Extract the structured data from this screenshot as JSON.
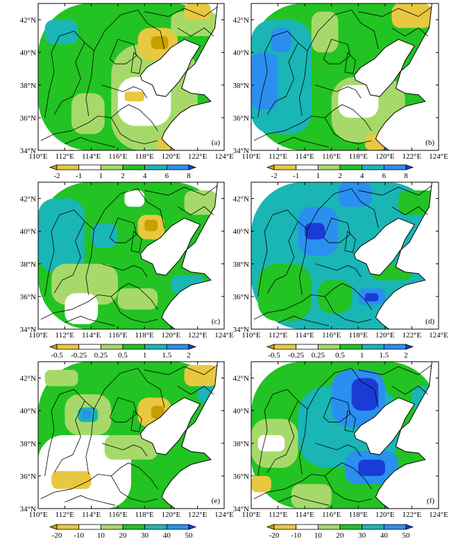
{
  "figure": {
    "lon_ticks": [
      "110°E",
      "112°E",
      "114°E",
      "116°E",
      "118°E",
      "120°E",
      "122°E",
      "124°E"
    ],
    "lat_ticks": [
      "34°N",
      "36°N",
      "38°N",
      "40°N",
      "42°N"
    ],
    "panels": [
      {
        "id": "a",
        "label": "(a)"
      },
      {
        "id": "b",
        "label": "(b)"
      },
      {
        "id": "c",
        "label": "(c)"
      },
      {
        "id": "d",
        "label": "(d)"
      },
      {
        "id": "e",
        "label": "(e)"
      },
      {
        "id": "f",
        "label": "(f)"
      }
    ],
    "colorbars": [
      {
        "id": "row1",
        "ticks": [
          "-2",
          "-1",
          "1",
          "2",
          "4",
          "6",
          "8"
        ]
      },
      {
        "id": "row2",
        "ticks": [
          "-0.5",
          "-0.25",
          "0.25",
          "0.5",
          "1",
          "1.5",
          "2"
        ]
      },
      {
        "id": "row3",
        "ticks": [
          "-20",
          "-10",
          "10",
          "20",
          "30",
          "40",
          "50"
        ]
      }
    ],
    "palette": {
      "neg_strong": "#c8a000",
      "neg_weak": "#e8c840",
      "near_zero": "#ffffff",
      "pos1": "#a6d96a",
      "pos2": "#22c322",
      "pos3": "#1ab5b5",
      "pos4": "#2b8ff0",
      "pos5": "#1a3cd6",
      "background": "#ffffff",
      "coastline": "#000000"
    }
  }
}
